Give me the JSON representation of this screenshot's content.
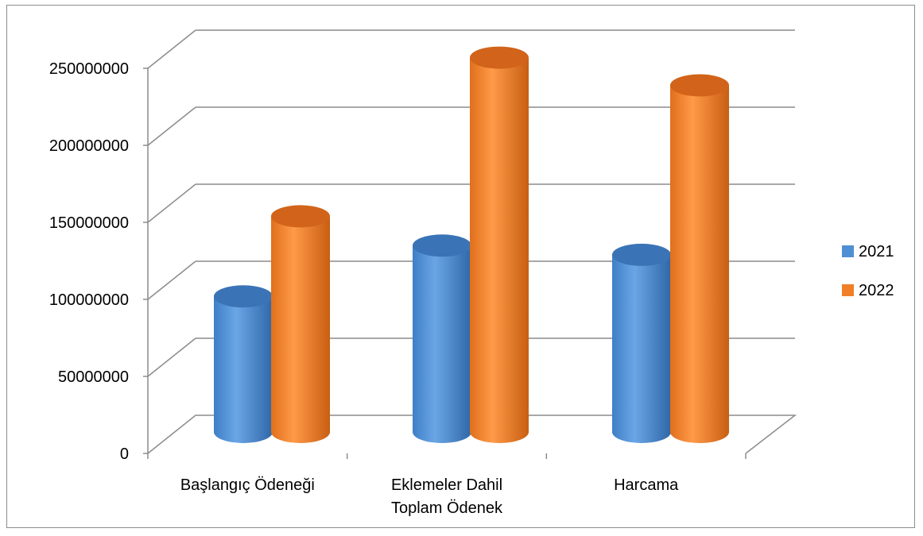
{
  "chart_data": {
    "type": "bar",
    "style": "3d-cylinder",
    "title": "",
    "xlabel": "",
    "ylabel": "",
    "categories": [
      [
        "Başlangıç Ödeneği"
      ],
      [
        "Eklemeler Dahil",
        "Toplam Ödenek"
      ],
      [
        "Harcama"
      ]
    ],
    "series": [
      {
        "name": "2021",
        "values": [
          88000000,
          121000000,
          115000000
        ],
        "color": "#4f8fd4"
      },
      {
        "name": "2022",
        "values": [
          140000000,
          243000000,
          225000000
        ],
        "color": "#f07f28"
      }
    ],
    "ylim": [
      0,
      250000000
    ],
    "yticks": [
      "0",
      "50000000",
      "100000000",
      "150000000",
      "200000000",
      "250000000"
    ],
    "grid": true,
    "legend_position": "right"
  }
}
